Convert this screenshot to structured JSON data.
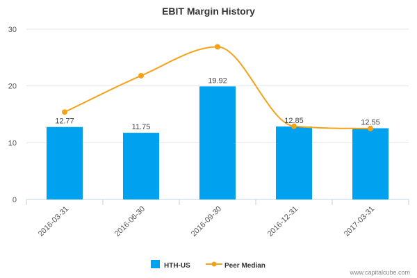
{
  "chart_data": {
    "type": "bar",
    "title": "EBIT Margin History",
    "xlabel": "",
    "ylabel": "",
    "categories": [
      "2016-03-31",
      "2016-06-30",
      "2016-09-30",
      "2016-12-31",
      "2017-03-31"
    ],
    "ylim": [
      0,
      30
    ],
    "yticks": [
      "0",
      "10",
      "20",
      "30"
    ],
    "grid": true,
    "legend_position": "bottom",
    "series": [
      {
        "name": "HTH-US",
        "kind": "bar",
        "color": "#00a2f0",
        "values": [
          12.77,
          11.75,
          19.92,
          12.85,
          12.55
        ],
        "labels": [
          "12.77",
          "11.75",
          "19.92",
          "12.85",
          "12.55"
        ]
      },
      {
        "name": "Peer Median",
        "kind": "line",
        "smooth": true,
        "color": "#f5a21b",
        "values": [
          15.4,
          21.8,
          26.9,
          12.9,
          12.5
        ]
      }
    ]
  },
  "credit": "www.capitalcube.com"
}
